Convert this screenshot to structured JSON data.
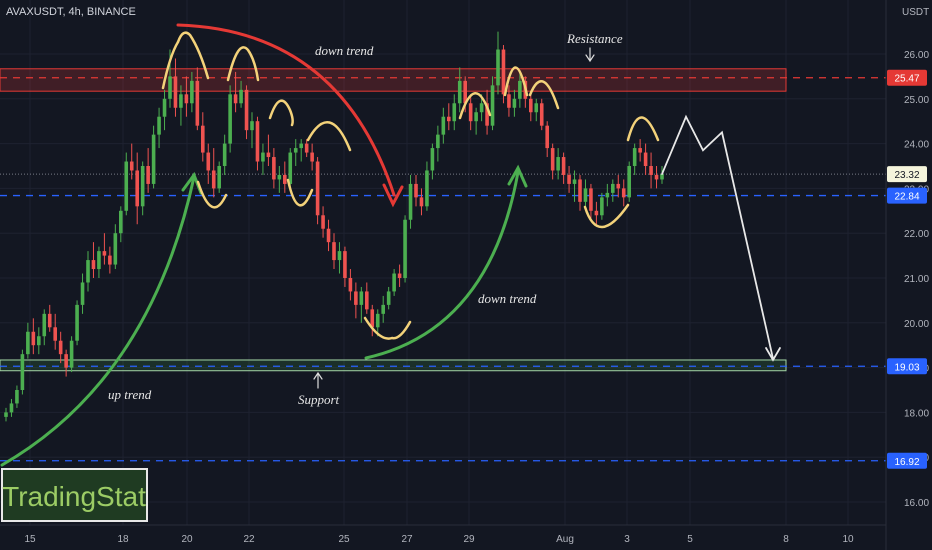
{
  "header": {
    "symbol": "AVAXUSDT, 4h, BINANCE"
  },
  "currency": "USDT",
  "brand": {
    "name": "TradingStat"
  },
  "annotations": {
    "down_trend_top": "down trend",
    "down_trend_mid": "down trend",
    "up_trend": "up trend",
    "resistance": "Resistance",
    "support": "Support"
  },
  "chart_data": {
    "type": "candlestick",
    "title": "AVAXUSDT, 4h, BINANCE",
    "x_ticks": [
      "15",
      "18",
      "20",
      "22",
      "25",
      "27",
      "29",
      "Aug",
      "3",
      "5",
      "8",
      "10"
    ],
    "y_ticks": [
      16.0,
      17.0,
      18.0,
      19.0,
      20.0,
      21.0,
      22.0,
      23.0,
      24.0,
      25.0,
      26.0
    ],
    "ylim": [
      15.2,
      27.0
    ],
    "last_price": "23.32",
    "levels": [
      {
        "label": "25.47",
        "value": 25.47,
        "color": "#e53935"
      },
      {
        "label": "22.84",
        "value": 22.84,
        "color": "#2962ff"
      },
      {
        "label": "19.03",
        "value": 19.03,
        "color": "#2962ff"
      },
      {
        "label": "16.92",
        "value": 16.92,
        "color": "#2962ff"
      }
    ],
    "zones": [
      {
        "name": "Resistance",
        "from": 25.17,
        "to": 25.67,
        "color": "#e53935"
      },
      {
        "name": "Support",
        "from": 18.93,
        "to": 19.17,
        "color": "#4caf50"
      }
    ],
    "colors": {
      "up": "#4caf50",
      "down": "#ef5350"
    },
    "candles": [
      [
        17.9,
        18.1,
        17.8,
        18.0
      ],
      [
        18.0,
        18.3,
        17.9,
        18.2
      ],
      [
        18.2,
        18.6,
        18.1,
        18.5
      ],
      [
        18.5,
        19.4,
        18.4,
        19.3
      ],
      [
        19.3,
        20.0,
        19.2,
        19.8
      ],
      [
        19.8,
        20.1,
        19.3,
        19.5
      ],
      [
        19.5,
        19.9,
        19.3,
        19.7
      ],
      [
        19.7,
        20.3,
        19.5,
        20.2
      ],
      [
        20.2,
        20.4,
        19.8,
        19.9
      ],
      [
        19.9,
        20.2,
        19.4,
        19.6
      ],
      [
        19.6,
        19.8,
        19.1,
        19.3
      ],
      [
        19.3,
        19.4,
        18.8,
        19.0
      ],
      [
        19.0,
        19.7,
        18.9,
        19.6
      ],
      [
        19.6,
        20.5,
        19.5,
        20.4
      ],
      [
        20.4,
        21.1,
        20.2,
        20.9
      ],
      [
        20.9,
        21.6,
        20.7,
        21.4
      ],
      [
        21.4,
        21.8,
        21.0,
        21.2
      ],
      [
        21.2,
        21.7,
        21.0,
        21.6
      ],
      [
        21.6,
        22.0,
        21.3,
        21.5
      ],
      [
        21.5,
        21.7,
        21.1,
        21.3
      ],
      [
        21.3,
        22.2,
        21.2,
        22.0
      ],
      [
        22.0,
        22.6,
        21.8,
        22.5
      ],
      [
        22.5,
        23.8,
        22.4,
        23.6
      ],
      [
        23.6,
        24.0,
        23.2,
        23.4
      ],
      [
        23.4,
        23.8,
        22.2,
        22.6
      ],
      [
        22.6,
        23.6,
        22.4,
        23.5
      ],
      [
        23.5,
        23.9,
        22.9,
        23.1
      ],
      [
        23.1,
        24.4,
        23.0,
        24.2
      ],
      [
        24.2,
        24.8,
        23.9,
        24.6
      ],
      [
        24.6,
        25.2,
        24.3,
        25.0
      ],
      [
        25.0,
        26.1,
        24.8,
        25.5
      ],
      [
        25.5,
        25.9,
        24.6,
        24.8
      ],
      [
        24.8,
        25.3,
        24.4,
        25.1
      ],
      [
        25.1,
        25.5,
        24.6,
        24.9
      ],
      [
        24.9,
        25.6,
        24.7,
        25.4
      ],
      [
        25.4,
        25.7,
        24.3,
        24.4
      ],
      [
        24.4,
        24.7,
        23.6,
        23.8
      ],
      [
        23.8,
        24.0,
        23.1,
        23.4
      ],
      [
        23.4,
        23.9,
        22.8,
        23.0
      ],
      [
        23.0,
        23.6,
        22.9,
        23.5
      ],
      [
        23.5,
        24.2,
        23.3,
        24.0
      ],
      [
        24.0,
        25.3,
        23.8,
        25.1
      ],
      [
        25.1,
        25.6,
        24.7,
        24.9
      ],
      [
        24.9,
        25.4,
        24.8,
        25.2
      ],
      [
        25.2,
        25.3,
        24.1,
        24.3
      ],
      [
        24.3,
        24.7,
        23.9,
        24.5
      ],
      [
        24.5,
        24.6,
        23.4,
        23.6
      ],
      [
        23.6,
        24.0,
        23.3,
        23.8
      ],
      [
        23.8,
        24.2,
        23.5,
        23.7
      ],
      [
        23.7,
        23.9,
        23.0,
        23.2
      ],
      [
        23.2,
        23.5,
        22.9,
        23.3
      ],
      [
        23.3,
        23.6,
        22.9,
        23.1
      ],
      [
        23.1,
        23.9,
        23.0,
        23.8
      ],
      [
        23.8,
        24.1,
        23.5,
        23.9
      ],
      [
        23.9,
        24.1,
        23.6,
        24.0
      ],
      [
        24.0,
        24.1,
        23.7,
        23.8
      ],
      [
        23.8,
        24.0,
        23.4,
        23.6
      ],
      [
        23.6,
        23.7,
        22.2,
        22.4
      ],
      [
        22.4,
        22.6,
        21.9,
        22.1
      ],
      [
        22.1,
        22.3,
        21.6,
        21.8
      ],
      [
        21.8,
        22.0,
        21.2,
        21.4
      ],
      [
        21.4,
        21.8,
        21.1,
        21.6
      ],
      [
        21.6,
        21.7,
        20.8,
        21.0
      ],
      [
        21.0,
        21.2,
        20.5,
        20.7
      ],
      [
        20.7,
        20.9,
        20.1,
        20.4
      ],
      [
        20.4,
        20.8,
        20.0,
        20.7
      ],
      [
        20.7,
        20.9,
        20.2,
        20.3
      ],
      [
        20.3,
        20.4,
        19.7,
        19.9
      ],
      [
        19.9,
        20.3,
        19.7,
        20.2
      ],
      [
        20.2,
        20.6,
        20.0,
        20.4
      ],
      [
        20.4,
        20.8,
        20.3,
        20.7
      ],
      [
        20.7,
        21.2,
        20.6,
        21.1
      ],
      [
        21.1,
        21.3,
        20.8,
        21.0
      ],
      [
        21.0,
        22.4,
        20.9,
        22.3
      ],
      [
        22.3,
        23.3,
        22.1,
        23.1
      ],
      [
        23.1,
        23.3,
        22.6,
        22.8
      ],
      [
        22.8,
        23.0,
        22.4,
        22.6
      ],
      [
        22.6,
        23.6,
        22.5,
        23.4
      ],
      [
        23.4,
        24.0,
        23.2,
        23.9
      ],
      [
        23.9,
        24.4,
        23.6,
        24.2
      ],
      [
        24.2,
        24.8,
        24.0,
        24.6
      ],
      [
        24.6,
        24.9,
        24.3,
        24.5
      ],
      [
        24.5,
        25.1,
        24.3,
        24.9
      ],
      [
        24.9,
        25.7,
        24.7,
        25.4
      ],
      [
        25.4,
        25.5,
        24.7,
        24.9
      ],
      [
        24.9,
        25.1,
        24.3,
        24.5
      ],
      [
        24.5,
        24.8,
        24.2,
        24.7
      ],
      [
        24.7,
        25.1,
        24.5,
        24.9
      ],
      [
        24.9,
        25.2,
        24.2,
        24.4
      ],
      [
        24.4,
        25.5,
        24.3,
        25.3
      ],
      [
        25.3,
        26.5,
        25.1,
        26.1
      ],
      [
        26.1,
        26.2,
        24.9,
        25.1
      ],
      [
        25.1,
        25.3,
        24.6,
        24.8
      ],
      [
        24.8,
        25.2,
        24.6,
        25.0
      ],
      [
        25.0,
        25.6,
        24.8,
        25.4
      ],
      [
        25.4,
        25.5,
        24.8,
        25.0
      ],
      [
        25.0,
        25.1,
        24.5,
        24.7
      ],
      [
        24.7,
        25.0,
        24.5,
        24.9
      ],
      [
        24.9,
        25.0,
        24.3,
        24.4
      ],
      [
        24.4,
        24.5,
        23.7,
        23.9
      ],
      [
        23.9,
        24.0,
        23.2,
        23.4
      ],
      [
        23.4,
        23.9,
        23.2,
        23.7
      ],
      [
        23.7,
        23.8,
        23.1,
        23.3
      ],
      [
        23.3,
        23.5,
        22.9,
        23.1
      ],
      [
        23.1,
        23.4,
        22.7,
        23.2
      ],
      [
        23.2,
        23.3,
        22.5,
        22.7
      ],
      [
        22.7,
        23.2,
        22.6,
        23.0
      ],
      [
        23.0,
        23.1,
        22.3,
        22.5
      ],
      [
        22.5,
        22.7,
        22.2,
        22.4
      ],
      [
        22.4,
        22.9,
        22.3,
        22.8
      ],
      [
        22.8,
        23.1,
        22.6,
        22.9
      ],
      [
        22.9,
        23.2,
        22.7,
        23.1
      ],
      [
        23.1,
        23.3,
        22.8,
        23.0
      ],
      [
        23.0,
        23.2,
        22.6,
        22.8
      ],
      [
        22.8,
        23.6,
        22.7,
        23.5
      ],
      [
        23.5,
        24.0,
        23.3,
        23.9
      ],
      [
        23.9,
        24.1,
        23.6,
        23.8
      ],
      [
        23.8,
        24.0,
        23.3,
        23.5
      ],
      [
        23.5,
        23.8,
        23.0,
        23.3
      ],
      [
        23.3,
        23.5,
        23.0,
        23.2
      ],
      [
        23.2,
        23.5,
        23.1,
        23.32
      ]
    ],
    "projection": [
      23.32,
      24.6,
      23.85,
      24.25,
      19.2
    ]
  }
}
